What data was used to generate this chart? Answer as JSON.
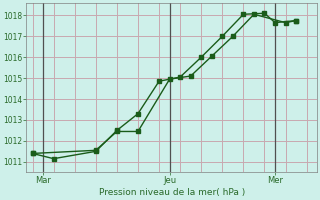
{
  "line1_x": [
    0,
    1,
    3,
    4,
    5,
    6,
    7,
    8,
    9,
    10,
    11,
    11.5,
    12.5
  ],
  "line1_y": [
    1011.4,
    1011.15,
    1011.5,
    1012.5,
    1013.3,
    1014.85,
    1015.05,
    1016.0,
    1017.0,
    1018.05,
    1018.1,
    1017.65,
    1017.75
  ],
  "line2_x": [
    0,
    3,
    4,
    5,
    6.5,
    7.5,
    8.5,
    9.5,
    10.5,
    12,
    12.5
  ],
  "line2_y": [
    1011.4,
    1011.55,
    1012.45,
    1012.45,
    1014.95,
    1015.1,
    1016.05,
    1017.0,
    1018.05,
    1017.65,
    1017.75
  ],
  "line_color": "#1a5c1a",
  "bg_color": "#cef0ea",
  "grid_major_color": "#c8a8b0",
  "ylim": [
    1010.5,
    1018.6
  ],
  "yticks": [
    1011,
    1012,
    1013,
    1014,
    1015,
    1016,
    1017,
    1018
  ],
  "xlabel": "Pression niveau de la mer( hPa )",
  "xtick_positions": [
    0.5,
    6.5,
    11.5
  ],
  "xtick_labels": [
    "Mar",
    "Jeu",
    "Mer"
  ],
  "vline_positions": [
    0.5,
    6.5,
    11.5
  ],
  "total_x": 13.5,
  "xlim": [
    -0.3,
    13.5
  ]
}
